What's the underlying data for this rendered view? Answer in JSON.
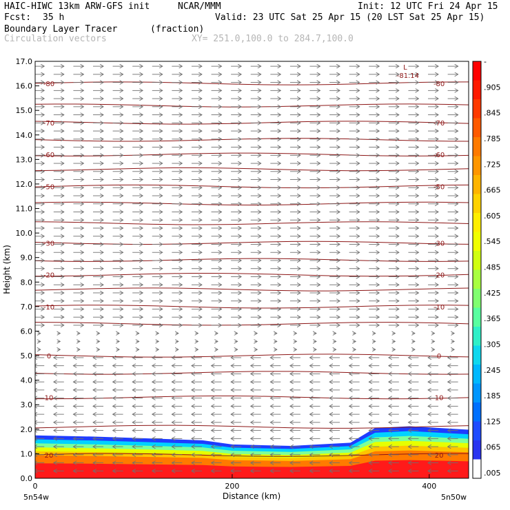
{
  "header": {
    "model": "HAIC-HIWC 13km ARW-GFS init",
    "org": "NCAR/MMM",
    "init": "Init: 12 UTC Fri 24 Apr 15",
    "fcst_label": "Fcst:",
    "fcst_value": "35 h",
    "valid": "Valid: 23 UTC Sat 25 Apr 15 (20 LST Sat 25 Apr 15)",
    "field": "Boundary Layer Tracer",
    "field_units": "(fraction)",
    "overlay": "Circulation vectors",
    "xy": "XY= 251.0,100.0 to 284.7,100.0"
  },
  "colors": {
    "contour": "#8b1414",
    "vector": "#707070",
    "tracer_low_blue": "#1f3cff",
    "tracer_high_red": "#ff1a1a"
  },
  "chart_data": {
    "type": "heatmap",
    "title": "Boundary Layer Tracer",
    "xlabel": "Distance (km)",
    "ylabel": "Height (km)",
    "xlim": [
      0,
      440
    ],
    "ylim": [
      0,
      17
    ],
    "x_ticks": [
      "0",
      "200",
      "400"
    ],
    "y_ticks": [
      "0.0",
      "1.0",
      "2.0",
      "3.0",
      "4.0",
      "5.0",
      "6.0",
      "7.0",
      "8.0",
      "9.0",
      "10.0",
      "11.0",
      "12.0",
      "13.0",
      "14.0",
      "15.0",
      "16.0",
      "17.0"
    ],
    "x_end_labels": {
      "left": "5n54w",
      "right": "5n50w"
    },
    "colorbar_labels": [
      "-",
      ".905",
      ".845",
      ".785",
      ".725",
      ".665",
      ".605",
      ".545",
      ".485",
      ".425",
      ".365",
      ".305",
      ".245",
      ".185",
      ".125",
      ".065",
      ".005"
    ],
    "tracer_top_km": [
      {
        "x": 0,
        "z": 1.75
      },
      {
        "x": 60,
        "z": 1.7
      },
      {
        "x": 120,
        "z": 1.62
      },
      {
        "x": 170,
        "z": 1.55
      },
      {
        "x": 200,
        "z": 1.38
      },
      {
        "x": 260,
        "z": 1.32
      },
      {
        "x": 320,
        "z": 1.45
      },
      {
        "x": 345,
        "z": 2.05
      },
      {
        "x": 380,
        "z": 2.12
      },
      {
        "x": 440,
        "z": 1.98
      }
    ],
    "tracer_bands": [
      {
        "label": ".005",
        "color": "#1f3cff"
      },
      {
        "label": ".245",
        "color": "#00d2ff"
      },
      {
        "label": ".425",
        "color": "#7dff9a"
      },
      {
        "label": ".545",
        "color": "#e6ff00"
      },
      {
        "label": ".665",
        "color": "#ffc400"
      },
      {
        "label": ".785",
        "color": "#ff7a00"
      },
      {
        "label": ".905",
        "color": "#ff1a1a"
      }
    ],
    "isotherms": [
      {
        "z": 16.1,
        "label": "-80"
      },
      {
        "z": 15.2,
        "label": ""
      },
      {
        "z": 14.5,
        "label": "-70"
      },
      {
        "z": 13.8,
        "label": ""
      },
      {
        "z": 13.2,
        "label": "-60"
      },
      {
        "z": 12.6,
        "label": ""
      },
      {
        "z": 11.9,
        "label": "-50"
      },
      {
        "z": 11.2,
        "label": ""
      },
      {
        "z": 10.4,
        "label": ""
      },
      {
        "z": 9.6,
        "label": "-30"
      },
      {
        "z": 8.9,
        "label": ""
      },
      {
        "z": 8.3,
        "label": "-20"
      },
      {
        "z": 7.7,
        "label": ""
      },
      {
        "z": 7.0,
        "label": "-10"
      },
      {
        "z": 6.3,
        "label": ""
      },
      {
        "z": 5.0,
        "label": "0"
      },
      {
        "z": 4.3,
        "label": ""
      },
      {
        "z": 3.3,
        "label": "10"
      },
      {
        "z": 2.1,
        "label": ""
      },
      {
        "z": 0.95,
        "label": "20"
      }
    ],
    "low_marker": {
      "label": "L",
      "value": "-81.14",
      "x": 370,
      "z": 16.6
    },
    "vectors": {
      "note": "eastward above ~6 km, westward below ~5.5 km"
    }
  }
}
